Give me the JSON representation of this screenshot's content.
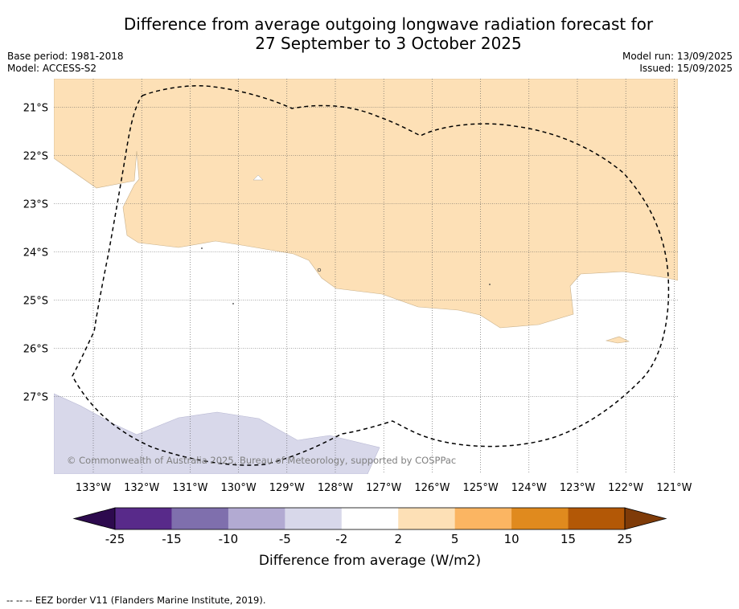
{
  "title_line1": "Difference from average outgoing longwave radiation forecast for",
  "title_line2": "27 September to 3 October 2025",
  "base_period": "Base period: 1981-2018",
  "model": "Model: ACCESS-S2",
  "model_run": "Model run: 13/09/2025",
  "issued": "Issued: 15/09/2025",
  "map": {
    "lat_ticks": [
      "21°S",
      "22°S",
      "23°S",
      "24°S",
      "25°S",
      "26°S",
      "27°S"
    ],
    "lon_ticks": [
      "133°W",
      "132°W",
      "131°W",
      "130°W",
      "129°W",
      "128°W",
      "127°W",
      "126°W",
      "125°W",
      "124°W",
      "123°W",
      "122°W",
      "121°W"
    ],
    "copyright": "© Commonwealth of Australia 2025, Bureau of Meteorology, supported by COSPPac"
  },
  "colorbar": {
    "label": "Difference from average (W/m2)",
    "ticks": [
      "-25",
      "-15",
      "-10",
      "-5",
      "-2",
      "2",
      "5",
      "10",
      "15",
      "25"
    ],
    "colors": [
      "#2d0a4e",
      "#582a8a",
      "#7f6fad",
      "#b2aad2",
      "#d8d8ea",
      "#ffffff",
      "#fde0b6",
      "#fbb562",
      "#e08a1e",
      "#b35806",
      "#7f3b08"
    ]
  },
  "footnote": "--  --  -- EEZ border V11 (Flanders Marine Institute, 2019)."
}
